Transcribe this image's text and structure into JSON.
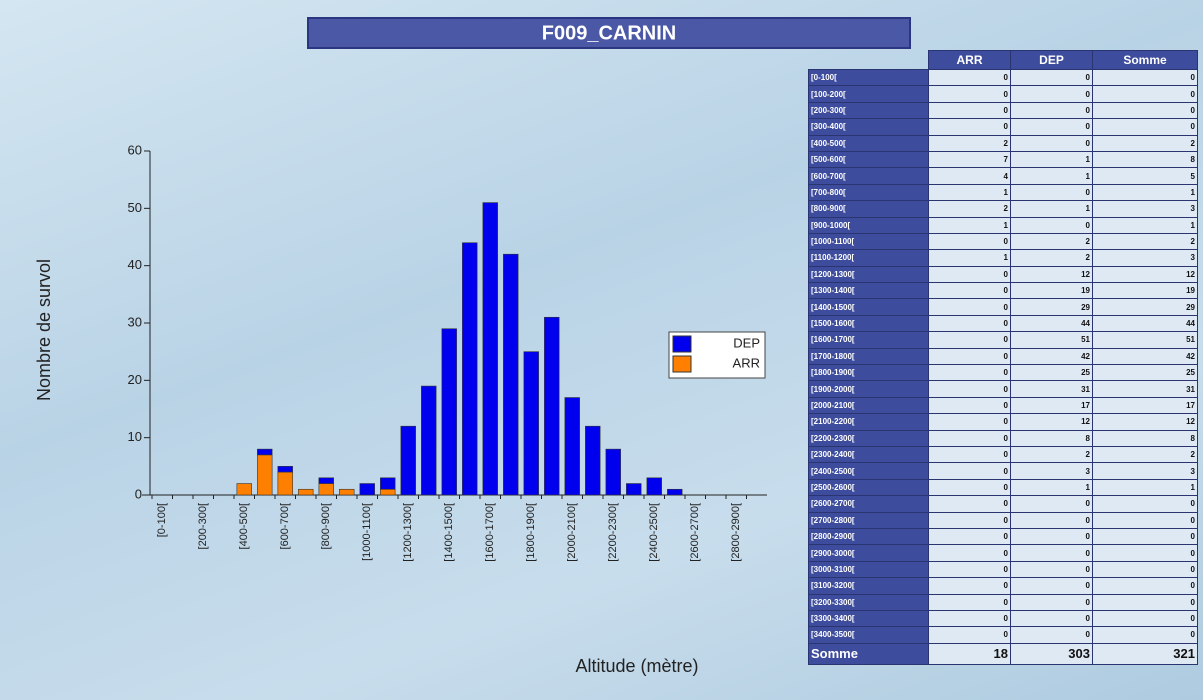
{
  "title": "F009_CARNIN",
  "chart_data": {
    "type": "bar",
    "stacked": true,
    "x_label": "Altitude (mètre)",
    "y_label": "Nombre de survol",
    "categories": [
      "[0-100[",
      null,
      "[200-300[",
      null,
      "[400-500[",
      null,
      "[600-700[",
      null,
      "[800-900[",
      null,
      "[1000-1100[",
      null,
      "[1200-1300[",
      null,
      "[1400-1500[",
      null,
      "[1600-1700[",
      null,
      "[1800-1900[",
      null,
      "[2000-2100[",
      null,
      "[2200-2300[",
      null,
      "[2400-2500[",
      null,
      "[2600-2700[",
      null,
      "[2800-2900[",
      null
    ],
    "series": [
      {
        "name": "DEP",
        "color": "#0000ee",
        "values": [
          0,
          0,
          0,
          0,
          0,
          1,
          1,
          0,
          1,
          0,
          2,
          2,
          12,
          19,
          29,
          44,
          51,
          42,
          25,
          31,
          17,
          12,
          8,
          2,
          3,
          1,
          0,
          0,
          0,
          0
        ]
      },
      {
        "name": "ARR",
        "color": "#ff8000",
        "values": [
          0,
          0,
          0,
          0,
          2,
          7,
          4,
          1,
          2,
          1,
          0,
          1,
          0,
          0,
          0,
          0,
          0,
          0,
          0,
          0,
          0,
          0,
          0,
          0,
          0,
          0,
          0,
          0,
          0,
          0
        ]
      }
    ],
    "ylim": [
      0,
      60
    ],
    "yticks": [
      0,
      10,
      20,
      30,
      40,
      50,
      60
    ]
  },
  "table": {
    "columns": [
      "ARR",
      "DEP",
      "Somme"
    ],
    "rows": [
      [
        "[0-100[",
        0,
        0,
        0
      ],
      [
        "[100-200[",
        0,
        0,
        0
      ],
      [
        "[200-300[",
        0,
        0,
        0
      ],
      [
        "[300-400[",
        0,
        0,
        0
      ],
      [
        "[400-500[",
        2,
        0,
        2
      ],
      [
        "[500-600[",
        7,
        1,
        8
      ],
      [
        "[600-700[",
        4,
        1,
        5
      ],
      [
        "[700-800[",
        1,
        0,
        1
      ],
      [
        "[800-900[",
        2,
        1,
        3
      ],
      [
        "[900-1000[",
        1,
        0,
        1
      ],
      [
        "[1000-1100[",
        0,
        2,
        2
      ],
      [
        "[1100-1200[",
        1,
        2,
        3
      ],
      [
        "[1200-1300[",
        0,
        12,
        12
      ],
      [
        "[1300-1400[",
        0,
        19,
        19
      ],
      [
        "[1400-1500[",
        0,
        29,
        29
      ],
      [
        "[1500-1600[",
        0,
        44,
        44
      ],
      [
        "[1600-1700[",
        0,
        51,
        51
      ],
      [
        "[1700-1800[",
        0,
        42,
        42
      ],
      [
        "[1800-1900[",
        0,
        25,
        25
      ],
      [
        "[1900-2000[",
        0,
        31,
        31
      ],
      [
        "[2000-2100[",
        0,
        17,
        17
      ],
      [
        "[2100-2200[",
        0,
        12,
        12
      ],
      [
        "[2200-2300[",
        0,
        8,
        8
      ],
      [
        "[2300-2400[",
        0,
        2,
        2
      ],
      [
        "[2400-2500[",
        0,
        3,
        3
      ],
      [
        "[2500-2600[",
        0,
        1,
        1
      ],
      [
        "[2600-2700[",
        0,
        0,
        0
      ],
      [
        "[2700-2800[",
        0,
        0,
        0
      ],
      [
        "[2800-2900[",
        0,
        0,
        0
      ],
      [
        "[2900-3000[",
        0,
        0,
        0
      ],
      [
        "[3000-3100[",
        0,
        0,
        0
      ],
      [
        "[3100-3200[",
        0,
        0,
        0
      ],
      [
        "[3200-3300[",
        0,
        0,
        0
      ],
      [
        "[3300-3400[",
        0,
        0,
        0
      ],
      [
        "[3400-3500[",
        0,
        0,
        0
      ]
    ],
    "footer": [
      "Somme",
      18,
      303,
      321
    ]
  }
}
